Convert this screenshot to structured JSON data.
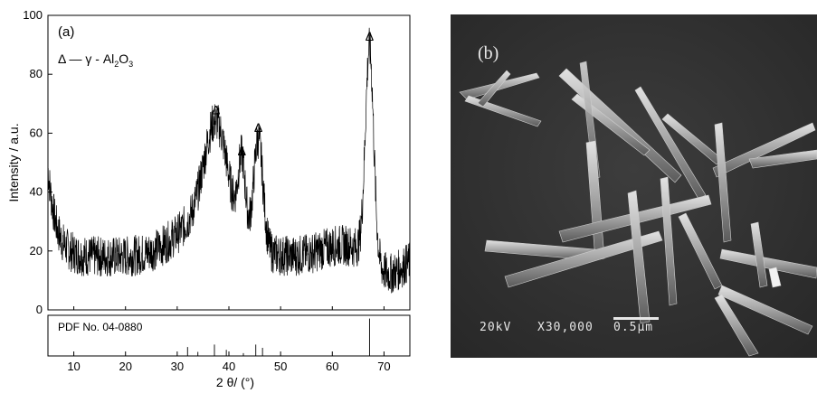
{
  "panel_a": {
    "label": "(a)",
    "legend": {
      "symbol": "Δ",
      "dash": "—",
      "phase_prefix": "γ - Al",
      "sub1": "2",
      "mid": "O",
      "sub2": "3"
    },
    "peak_marker": "Δ",
    "reference_label": "PDF No. 04-0880"
  },
  "panel_b": {
    "label": "(b)",
    "voltage": "20kV",
    "magnification": "X30,000",
    "scale": "0.5μm"
  },
  "chart_data": {
    "type": "line",
    "xlabel": "2 θ/ (°)",
    "ylabel": "Intensity / a.u.",
    "xlim": [
      5,
      75
    ],
    "ylim": [
      0,
      100
    ],
    "xticks": [
      10,
      20,
      30,
      40,
      50,
      60,
      70
    ],
    "yticks": [
      0,
      20,
      40,
      60,
      80,
      100
    ],
    "peaks": [
      {
        "x": 37.5,
        "y": 64
      },
      {
        "x": 42.5,
        "y": 50
      },
      {
        "x": 45.7,
        "y": 58
      },
      {
        "x": 67.2,
        "y": 89
      }
    ],
    "reference_lines": [
      {
        "x": 32.0,
        "h": 0.22
      },
      {
        "x": 34.0,
        "h": 0.1
      },
      {
        "x": 37.2,
        "h": 0.28
      },
      {
        "x": 39.5,
        "h": 0.15
      },
      {
        "x": 42.8,
        "h": 0.07
      },
      {
        "x": 45.2,
        "h": 0.28
      },
      {
        "x": 46.5,
        "h": 0.2
      },
      {
        "x": 67.2,
        "h": 0.92
      }
    ]
  }
}
